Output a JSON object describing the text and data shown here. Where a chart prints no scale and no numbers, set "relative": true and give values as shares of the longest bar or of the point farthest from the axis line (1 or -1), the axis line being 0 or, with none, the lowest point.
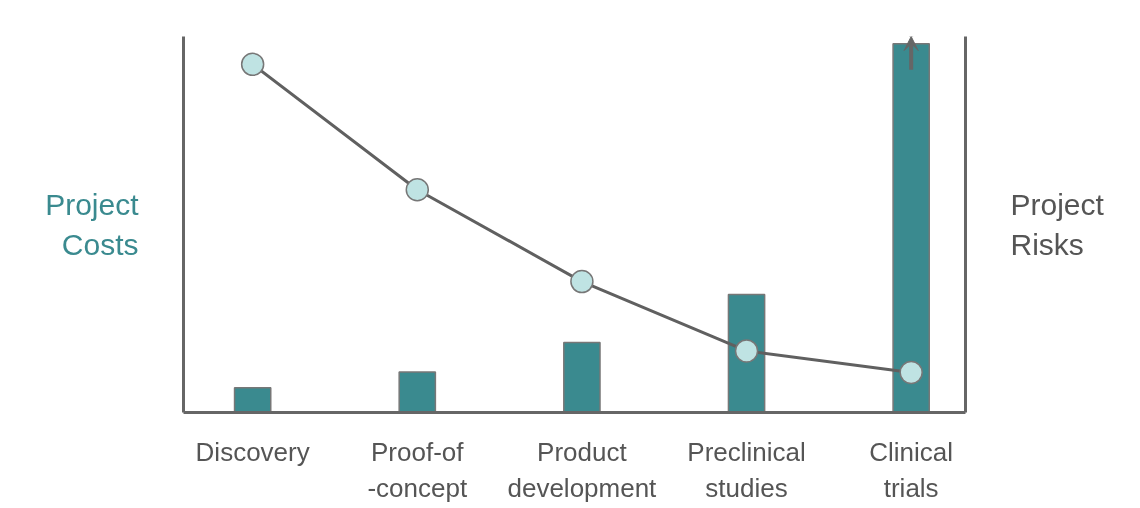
{
  "chart_data": {
    "type": "bar",
    "relative": true,
    "ylabel": "Project\nCosts",
    "y2label": "Project\nRisks",
    "categories": [
      "Discovery",
      "Proof-of\n-concept",
      "Product\ndevelopment",
      "Preclinical\nstudies",
      "Clinical\ntrials"
    ],
    "series": [
      {
        "color": "#3a8a8f",
        "values": [
          0.067,
          0.11,
          0.19,
          0.32,
          1
        ]
      },
      {
        "type": "line",
        "axis": "y2",
        "color": "#606060",
        "marker": "circle",
        "values": [
          1,
          0.64,
          0.376,
          0.177,
          0.115
        ]
      }
    ],
    "grid": false
  }
}
